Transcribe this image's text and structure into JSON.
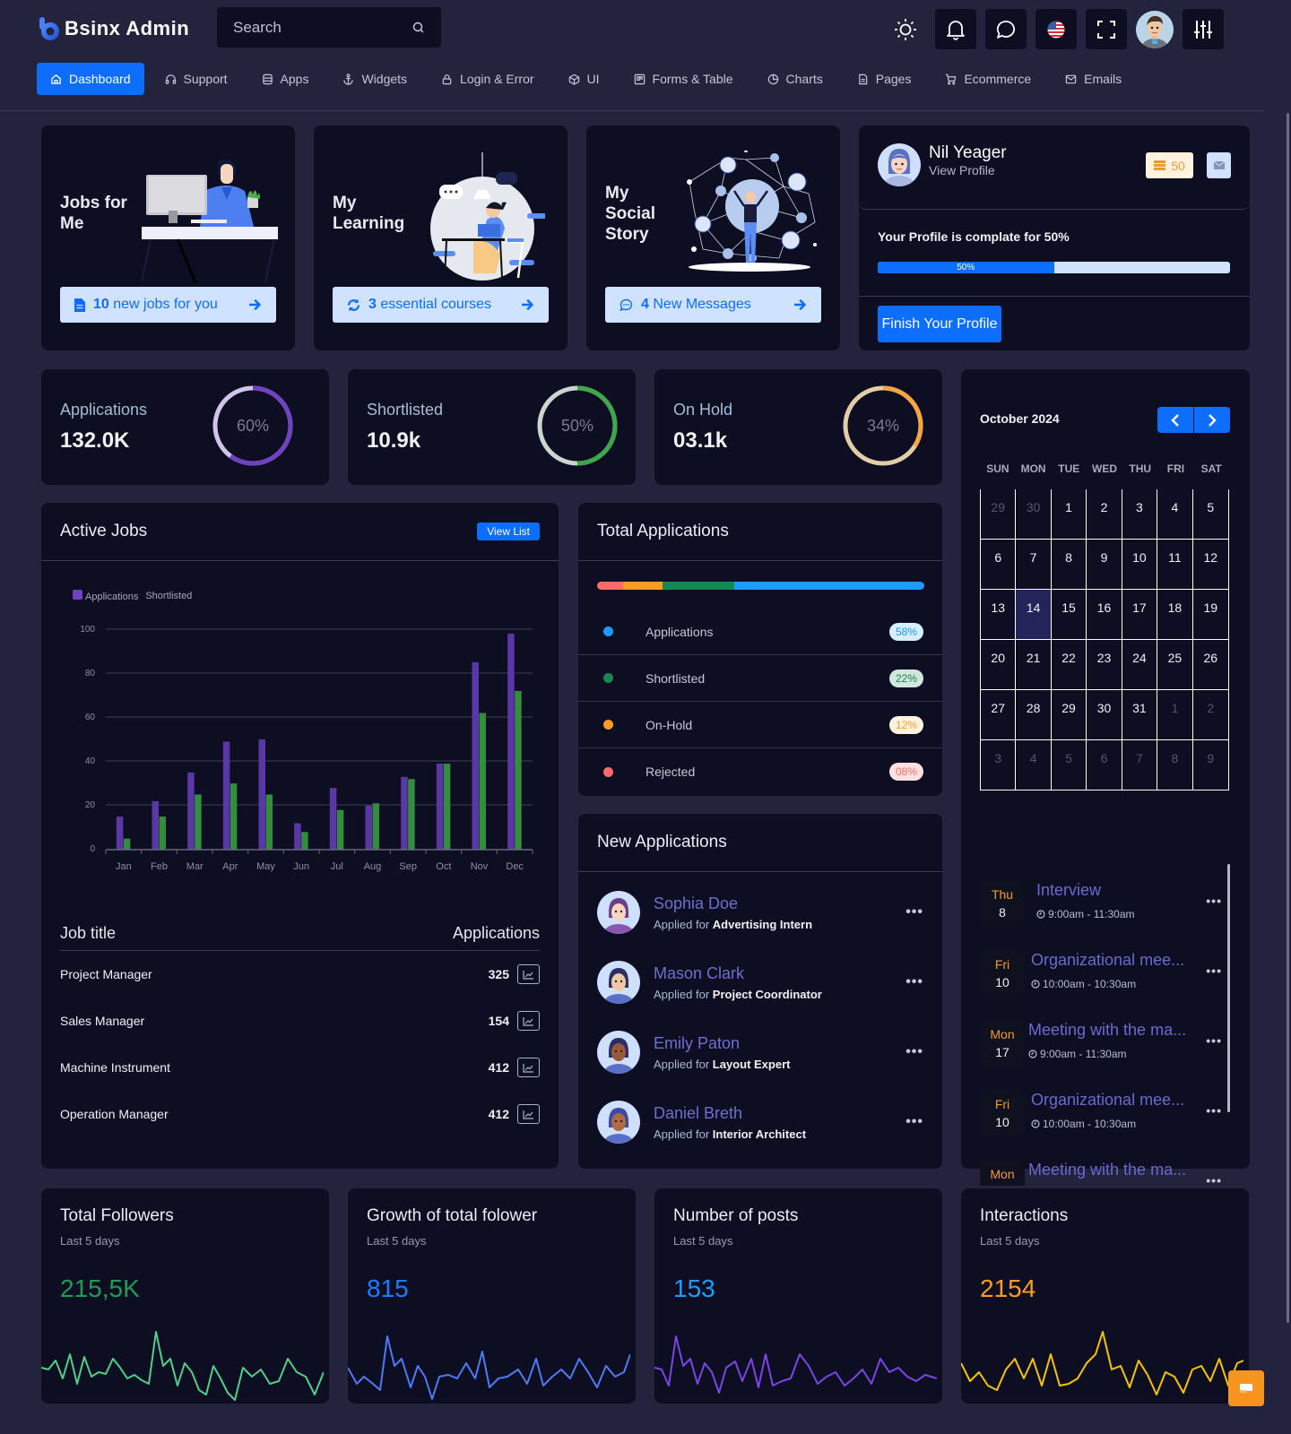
{
  "header": {
    "brand": "Bsinx Admin",
    "search_placeholder": "Search",
    "icons": [
      "sun-icon",
      "bell-icon",
      "chat-icon",
      "us-flag-icon",
      "fullscreen-icon",
      "user-avatar",
      "settings-sliders-icon"
    ]
  },
  "nav": {
    "items": [
      {
        "label": "Dashboard",
        "icon": "home-icon",
        "active": true
      },
      {
        "label": "Support",
        "icon": "headphones-icon"
      },
      {
        "label": "Apps",
        "icon": "database-icon"
      },
      {
        "label": "Widgets",
        "icon": "anchor-icon"
      },
      {
        "label": "Login & Error",
        "icon": "lock-icon"
      },
      {
        "label": "UI",
        "icon": "box-icon"
      },
      {
        "label": "Forms & Table",
        "icon": "table-icon"
      },
      {
        "label": "Charts",
        "icon": "pie-chart-icon"
      },
      {
        "label": "Pages",
        "icon": "file-icon"
      },
      {
        "label": "Ecommerce",
        "icon": "cart-icon"
      },
      {
        "label": "Emails",
        "icon": "mail-icon"
      }
    ]
  },
  "features": [
    {
      "title_line1": "Jobs for",
      "title_line2": "Me",
      "title_line3": "",
      "btn_count": "10",
      "btn_text": "new jobs for you"
    },
    {
      "title_line1": "My",
      "title_line2": "Learning",
      "title_line3": "",
      "btn_count": "3",
      "btn_text": "essential courses"
    },
    {
      "title_line1": "My",
      "title_line2": "Social",
      "title_line3": "Story",
      "btn_count": "4",
      "btn_text": "New Messages"
    }
  ],
  "profile": {
    "name": "Nil Yeager",
    "link": "View Profile",
    "badge_count": "50",
    "complete_text": "Your Profile is complate for 50%",
    "progress_label": "50%",
    "progress": 50,
    "finish_btn": "Finish Your Profile"
  },
  "stats": [
    {
      "label": "Applications",
      "value": "132.0K",
      "pct": "60%",
      "pct_num": 60,
      "color": "#6f42c1",
      "track": "#d0c4e8"
    },
    {
      "label": "Shortlisted",
      "value": "10.9k",
      "pct": "50%",
      "pct_num": 50,
      "color": "#3ca84a",
      "track": "#ccd6cf"
    },
    {
      "label": "On Hold",
      "value": "03.1k",
      "pct": "34%",
      "pct_num": 34,
      "color": "#f6a540",
      "track": "#e3cda8"
    }
  ],
  "active_jobs": {
    "title": "Active Jobs",
    "view_list": "View List",
    "legend": [
      "Applications",
      "Shortlisted"
    ],
    "table_header": {
      "title": "Job title",
      "apps": "Applications"
    },
    "rows": [
      {
        "title": "Project Manager",
        "count": "325"
      },
      {
        "title": "Sales Manager",
        "count": "154"
      },
      {
        "title": "Machine Instrument",
        "count": "412"
      },
      {
        "title": "Operation Manager",
        "count": "412"
      }
    ]
  },
  "chart_data": {
    "type": "bar",
    "title": "Active Jobs",
    "categories": [
      "Jan",
      "Feb",
      "Mar",
      "Apr",
      "May",
      "Jun",
      "Jul",
      "Aug",
      "Sep",
      "Oct",
      "Nov",
      "Dec"
    ],
    "series": [
      {
        "name": "Applications",
        "color": "#5a37a6",
        "values": [
          15,
          22,
          35,
          49,
          50,
          12,
          28,
          20,
          33,
          39,
          85,
          98
        ]
      },
      {
        "name": "Shortlisted",
        "color": "#348c3e",
        "values": [
          5,
          15,
          25,
          30,
          25,
          8,
          18,
          21,
          32,
          39,
          62,
          72
        ]
      }
    ],
    "yticks": [
      0,
      20,
      40,
      60,
      80,
      100
    ],
    "ylim": [
      0,
      100
    ],
    "grid": true,
    "legend_position": "top-left",
    "xlabel": "",
    "ylabel": ""
  },
  "total_applications": {
    "title": "Total Applications",
    "segments": [
      {
        "label": "Rejected",
        "pct": 8,
        "color": "#ff6b6b"
      },
      {
        "label": "On-Hold",
        "pct": 12,
        "color": "#fd9c22"
      },
      {
        "label": "Shortlisted",
        "pct": 22,
        "color": "#198754"
      },
      {
        "label": "Applications",
        "pct": 58,
        "color": "#1e9bff"
      }
    ],
    "rows": [
      {
        "label": "Applications",
        "badge": "58%",
        "color": "#1e9bff",
        "bg": "#d6efff"
      },
      {
        "label": "Shortlisted",
        "badge": "22%",
        "color": "#198754",
        "bg": "#d1e7dd"
      },
      {
        "label": "On-Hold",
        "badge": "12%",
        "color": "#fd9c22",
        "bg": "#fff3e0"
      },
      {
        "label": "Rejected",
        "badge": "08%",
        "color": "#ff6b6b",
        "bg": "#ffe1e1"
      }
    ]
  },
  "new_applications": {
    "title": "New Applications",
    "prefix": "Applied for",
    "items": [
      {
        "name": "Sophia Doe",
        "role": "Advertising Intern"
      },
      {
        "name": "Mason Clark",
        "role": "Project Coordinator"
      },
      {
        "name": "Emily Paton",
        "role": "Layout Expert"
      },
      {
        "name": "Daniel Breth",
        "role": "Interior Architect"
      }
    ]
  },
  "calendar": {
    "month": "October 2024",
    "dow": [
      "SUN",
      "MON",
      "TUE",
      "WED",
      "THU",
      "FRI",
      "SAT"
    ],
    "today": 14,
    "cells": [
      {
        "d": "29",
        "m": true
      },
      {
        "d": "30",
        "m": true
      },
      {
        "d": "1"
      },
      {
        "d": "2"
      },
      {
        "d": "3"
      },
      {
        "d": "4"
      },
      {
        "d": "5"
      },
      {
        "d": "6"
      },
      {
        "d": "7"
      },
      {
        "d": "8"
      },
      {
        "d": "9"
      },
      {
        "d": "10"
      },
      {
        "d": "11"
      },
      {
        "d": "12"
      },
      {
        "d": "13"
      },
      {
        "d": "14",
        "t": true
      },
      {
        "d": "15"
      },
      {
        "d": "16"
      },
      {
        "d": "17"
      },
      {
        "d": "18"
      },
      {
        "d": "19"
      },
      {
        "d": "20"
      },
      {
        "d": "21"
      },
      {
        "d": "22"
      },
      {
        "d": "23"
      },
      {
        "d": "24"
      },
      {
        "d": "25"
      },
      {
        "d": "26"
      },
      {
        "d": "27"
      },
      {
        "d": "28"
      },
      {
        "d": "29"
      },
      {
        "d": "30"
      },
      {
        "d": "31"
      },
      {
        "d": "1",
        "m": true
      },
      {
        "d": "2",
        "m": true
      },
      {
        "d": "3",
        "m": true
      },
      {
        "d": "4",
        "m": true
      },
      {
        "d": "5",
        "m": true
      },
      {
        "d": "6",
        "m": true
      },
      {
        "d": "7",
        "m": true
      },
      {
        "d": "8",
        "m": true
      },
      {
        "d": "9",
        "m": true
      }
    ],
    "events": [
      {
        "day": "Thu",
        "num": "8",
        "title": "Interview",
        "time": "9:00am - 11:30am"
      },
      {
        "day": "Fri",
        "num": "10",
        "title": "Organizational mee...",
        "time": "10:00am - 10:30am"
      },
      {
        "day": "Mon",
        "num": "17",
        "title": "Meeting with the ma...",
        "time": "9:00am - 11:30am"
      },
      {
        "day": "Fri",
        "num": "10",
        "title": "Organizational mee...",
        "time": "10:00am - 10:30am"
      },
      {
        "day": "Mon",
        "num": "",
        "title": "Meeting with the ma...",
        "time": ""
      }
    ]
  },
  "social": [
    {
      "title": "Total Followers",
      "sub": "Last 5 days",
      "value": "215,5K",
      "color": "#1f9d55",
      "line": "#4fd08a"
    },
    {
      "title": "Growth of total folower",
      "sub": "Last 5 days",
      "value": "815",
      "color": "#1e7bff",
      "line": "#4c7bf5"
    },
    {
      "title": "Number of posts",
      "sub": "Last 5 days",
      "value": "153",
      "color": "#1e9bff",
      "line": "#7a45e6"
    },
    {
      "title": "Interactions",
      "sub": "Last 5 days",
      "value": "2154",
      "color": "#fd9c22",
      "line": "#f7c400"
    }
  ]
}
